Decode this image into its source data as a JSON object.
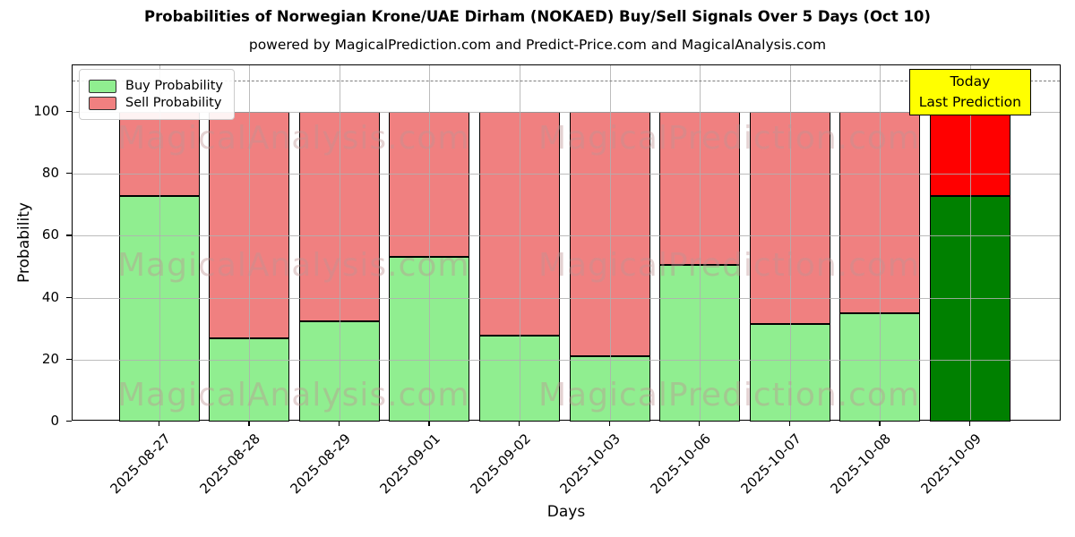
{
  "header": {
    "title": "Probabilities of Norwegian Krone/UAE Dirham (NOKAED) Buy/Sell Signals Over 5 Days (Oct 10)",
    "subtitle": "powered by MagicalPrediction.com and Predict-Price.com and MagicalAnalysis.com"
  },
  "legend": {
    "buy_label": "Buy Probability",
    "sell_label": "Sell Probability"
  },
  "annotation": {
    "line1": "Today",
    "line2": "Last Prediction"
  },
  "watermarks": [
    "MagicalAnalysis.com",
    "MagicalPrediction.com"
  ],
  "colors": {
    "buy": "#90EE90",
    "sell": "#F08080",
    "buy_last": "#008000",
    "sell_last": "#FF0000",
    "annotation_bg": "#FFFF00",
    "bar_edge": "#000000",
    "grid": "#B0B0B0",
    "dashed_line": "#7F7F7F"
  },
  "chart_data": {
    "type": "bar",
    "stacked": true,
    "title": "Probabilities of Norwegian Krone/UAE Dirham (NOKAED) Buy/Sell Signals Over 5 Days (Oct 10)",
    "xlabel": "Days",
    "ylabel": "Probability",
    "categories": [
      "2025-08-27",
      "2025-08-28",
      "2025-08-29",
      "2025-09-01",
      "2025-09-02",
      "2025-10-03",
      "2025-10-06",
      "2025-10-07",
      "2025-10-08",
      "2025-10-09"
    ],
    "series": [
      {
        "name": "Buy Probability",
        "values": [
          72.7,
          27.0,
          32.5,
          53.3,
          27.7,
          21.2,
          50.5,
          31.5,
          35.0,
          72.7
        ]
      },
      {
        "name": "Sell Probability",
        "values": [
          27.3,
          73.0,
          67.5,
          46.7,
          72.3,
          78.8,
          49.5,
          68.5,
          65.0,
          27.3
        ]
      }
    ],
    "ylim": [
      0,
      115
    ],
    "yticks": [
      0,
      20,
      40,
      60,
      80,
      100
    ],
    "dashed_line_y": 110,
    "grid": true,
    "legend_position": "upper left",
    "highlighted_bar": "2025-10-09"
  }
}
